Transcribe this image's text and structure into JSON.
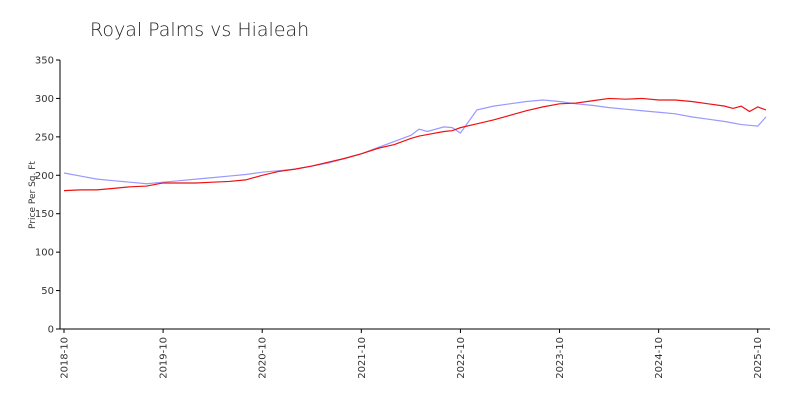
{
  "chart_data": {
    "type": "line",
    "title": "Royal Palms vs Hialeah",
    "y_label": "Price Per Sq. Ft",
    "x": [
      "2018-10",
      "2018-12",
      "2019-02",
      "2019-04",
      "2019-06",
      "2019-08",
      "2019-10",
      "2019-12",
      "2020-02",
      "2020-04",
      "2020-06",
      "2020-08",
      "2020-10",
      "2020-12",
      "2021-02",
      "2021-04",
      "2021-06",
      "2021-08",
      "2021-10",
      "2021-12",
      "2022-02",
      "2022-04",
      "2022-05",
      "2022-06",
      "2022-08",
      "2022-09",
      "2022-10",
      "2022-12",
      "2023-02",
      "2023-04",
      "2023-06",
      "2023-08",
      "2023-10",
      "2023-12",
      "2024-02",
      "2024-04",
      "2024-06",
      "2024-08",
      "2024-10",
      "2024-12",
      "2025-02",
      "2025-04",
      "2025-06",
      "2025-07",
      "2025-08",
      "2025-09",
      "2025-10",
      "2025-11"
    ],
    "series": [
      {
        "color": "#9999ff",
        "values": [
          203,
          199,
          195,
          193,
          191,
          189,
          191,
          193,
          195,
          197,
          199,
          201,
          204,
          206,
          208,
          212,
          216,
          222,
          228,
          236,
          244,
          252,
          260,
          257,
          263,
          262,
          255,
          285,
          290,
          293,
          296,
          298,
          296,
          293,
          291,
          288,
          286,
          284,
          282,
          280,
          276,
          273,
          270,
          268,
          266,
          265,
          264,
          276
        ]
      },
      {
        "color": "#ee1111",
        "values": [
          180,
          181,
          181,
          183,
          185,
          186,
          190,
          190,
          190,
          191,
          192,
          194,
          200,
          205,
          208,
          212,
          217,
          222,
          228,
          235,
          240,
          248,
          251,
          253,
          257,
          258,
          262,
          267,
          272,
          278,
          284,
          289,
          293,
          294,
          297,
          300,
          299,
          300,
          298,
          298,
          296,
          293,
          290,
          287,
          290,
          283,
          289,
          285
        ]
      }
    ],
    "xlim": [
      "2018-10",
      "2025-11"
    ],
    "xticks": [
      "2018-10",
      "2019-10",
      "2020-10",
      "2021-10",
      "2022-10",
      "2023-10",
      "2024-10",
      "2025-10"
    ],
    "ylim": [
      0,
      350
    ],
    "yticks": [
      0,
      50,
      100,
      150,
      200,
      250,
      300,
      350
    ],
    "grid": false
  }
}
